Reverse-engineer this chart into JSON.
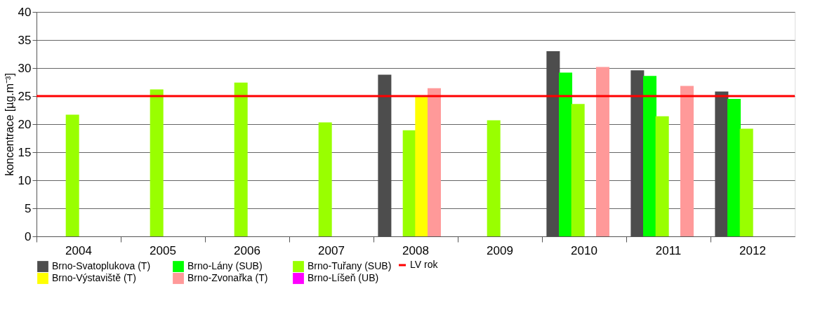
{
  "chart_data": {
    "type": "bar",
    "ylabel": "koncentrace [µg.m⁻³]",
    "categories": [
      "2004",
      "2005",
      "2006",
      "2007",
      "2008",
      "2009",
      "2010",
      "2011",
      "2012"
    ],
    "ylim": [
      0,
      40
    ],
    "yticks": [
      0,
      5,
      10,
      15,
      20,
      25,
      30,
      35,
      40
    ],
    "grid": "y",
    "legend": "bottom",
    "series": [
      {
        "name": "Brno-Svatoplukova (T)",
        "color": "#4d4d4d",
        "values": [
          null,
          null,
          null,
          null,
          28.8,
          null,
          33.0,
          29.6,
          25.8
        ]
      },
      {
        "name": "Brno-Lány (SUB)",
        "color": "#00ff00",
        "values": [
          null,
          null,
          null,
          null,
          null,
          null,
          29.2,
          28.6,
          24.5
        ]
      },
      {
        "name": "Brno-Tuřany (SUB)",
        "color": "#99ff00",
        "values": [
          21.7,
          26.2,
          27.4,
          20.3,
          18.9,
          20.7,
          23.6,
          21.4,
          19.2
        ]
      },
      {
        "name": "Brno-Výstaviště  (T)",
        "color": "#ffff00",
        "values": [
          null,
          null,
          null,
          null,
          24.9,
          null,
          null,
          null,
          null
        ]
      },
      {
        "name": "Brno-Zvonařka  (T)",
        "color": "#ff9999",
        "values": [
          null,
          null,
          null,
          null,
          26.4,
          null,
          30.2,
          26.8,
          null
        ]
      },
      {
        "name": "Brno-Líšeň (UB)",
        "color": "#ff00ff",
        "values": [
          null,
          null,
          null,
          null,
          null,
          null,
          null,
          null,
          null
        ]
      }
    ],
    "ref_lines": [
      {
        "axis": "y",
        "value": 25,
        "label": "LV rok",
        "color": "#ff0000"
      }
    ]
  }
}
